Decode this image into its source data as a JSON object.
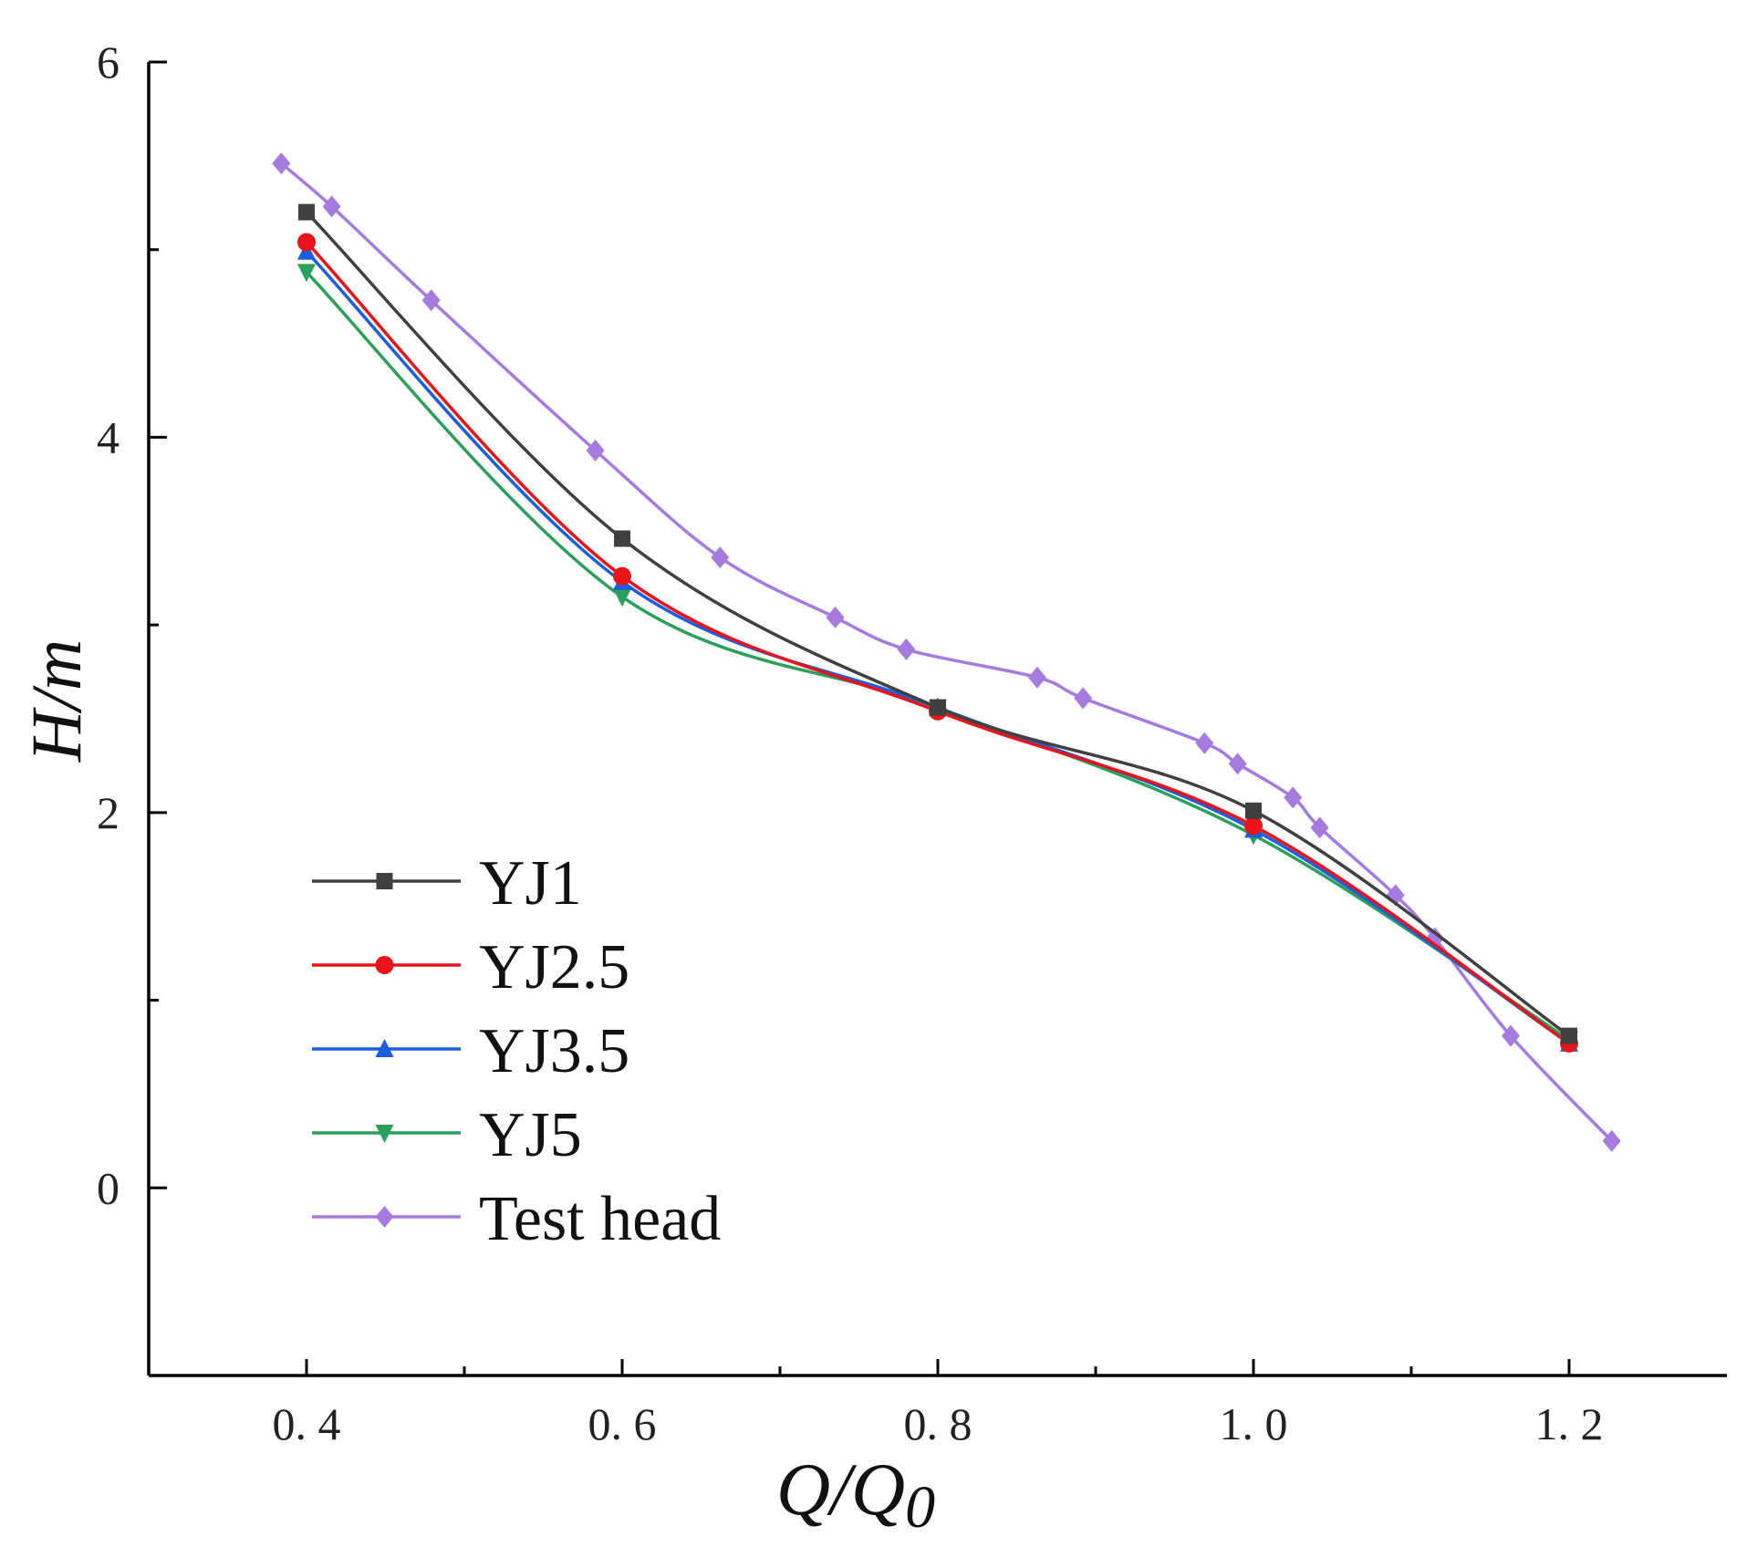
{
  "chart_data": {
    "type": "line",
    "title": "",
    "xlabel_main": "Q/Q",
    "xlabel_sub": "0",
    "ylabel": "H/m",
    "xlim": [
      0.3,
      1.3
    ],
    "ylim": [
      -1,
      6
    ],
    "x_ticks": [
      0.4,
      0.6,
      0.8,
      1.0,
      1.2
    ],
    "x_tick_labels": [
      "0. 4",
      "0. 6",
      "0. 8",
      "1. 0",
      "1. 2"
    ],
    "x_minor_ticks": [
      0.5,
      0.7,
      0.9,
      1.1
    ],
    "y_ticks": [
      0,
      2,
      4,
      6
    ],
    "y_tick_labels": [
      "0",
      "2",
      "4",
      "6"
    ],
    "y_minor_ticks": [
      1,
      3,
      5
    ],
    "grid": false,
    "legend_position": "bottom-left",
    "series": [
      {
        "name": "YJ1",
        "color": "#404040",
        "marker": "square",
        "x": [
          0.4,
          0.6,
          0.8,
          1.0,
          1.2
        ],
        "y": [
          5.2,
          3.46,
          2.56,
          2.01,
          0.81
        ]
      },
      {
        "name": "YJ2.5",
        "color": "#e8141a",
        "marker": "circle",
        "x": [
          0.4,
          0.6,
          0.8,
          1.0,
          1.2
        ],
        "y": [
          5.04,
          3.26,
          2.54,
          1.93,
          0.77
        ]
      },
      {
        "name": "YJ3.5",
        "color": "#1a5fe0",
        "marker": "triangle-up",
        "x": [
          0.4,
          0.6,
          0.8,
          1.0,
          1.2
        ],
        "y": [
          4.99,
          3.23,
          2.56,
          1.91,
          0.77
        ]
      },
      {
        "name": "YJ5",
        "color": "#2aa15a",
        "marker": "triangle-down",
        "x": [
          0.4,
          0.6,
          0.8,
          1.0,
          1.2
        ],
        "y": [
          4.88,
          3.15,
          2.56,
          1.88,
          0.79
        ]
      },
      {
        "name": "Test head",
        "color": "#a57be0",
        "marker": "diamond",
        "x": [
          0.384,
          0.416,
          0.479,
          0.583,
          0.662,
          0.735,
          0.78,
          0.863,
          0.892,
          0.969,
          0.99,
          1.025,
          1.042,
          1.09,
          1.115,
          1.163,
          1.227
        ],
        "y": [
          5.46,
          5.23,
          4.73,
          3.93,
          3.36,
          3.04,
          2.87,
          2.72,
          2.61,
          2.37,
          2.26,
          2.08,
          1.92,
          1.56,
          1.33,
          0.81,
          0.25
        ]
      }
    ]
  }
}
